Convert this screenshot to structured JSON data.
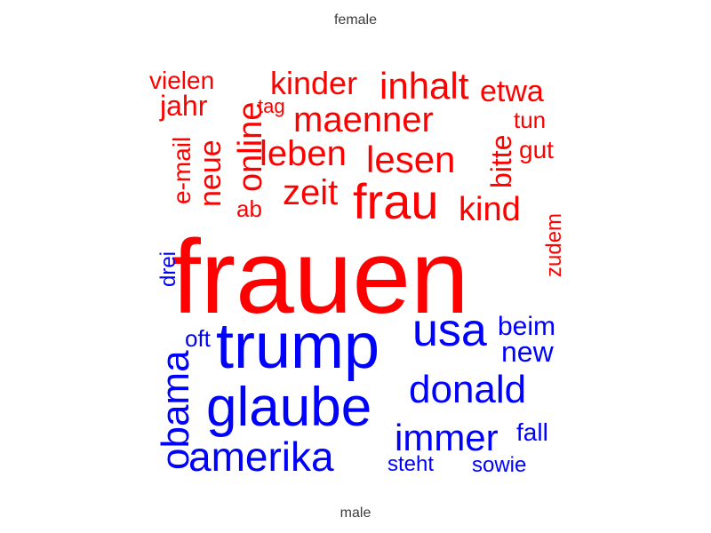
{
  "chart_data": {
    "type": "wordcloud",
    "groups": [
      {
        "name": "female",
        "color": "#ff0000",
        "words": [
          {
            "text": "frauen"
          },
          {
            "text": "frau"
          },
          {
            "text": "inhalt"
          },
          {
            "text": "maenner"
          },
          {
            "text": "lesen"
          },
          {
            "text": "leben"
          },
          {
            "text": "zeit"
          },
          {
            "text": "kinder"
          },
          {
            "text": "online"
          },
          {
            "text": "kind"
          },
          {
            "text": "etwa"
          },
          {
            "text": "neue"
          },
          {
            "text": "bitte"
          },
          {
            "text": "jahr"
          },
          {
            "text": "vielen"
          },
          {
            "text": "e-mail"
          },
          {
            "text": "gut"
          },
          {
            "text": "tun"
          },
          {
            "text": "ab"
          },
          {
            "text": "zudem"
          },
          {
            "text": "tag"
          }
        ]
      },
      {
        "name": "male",
        "color": "#0000ff",
        "words": [
          {
            "text": "trump"
          },
          {
            "text": "glaube"
          },
          {
            "text": "usa"
          },
          {
            "text": "donald"
          },
          {
            "text": "obama"
          },
          {
            "text": "amerika"
          },
          {
            "text": "immer"
          },
          {
            "text": "new"
          },
          {
            "text": "beim"
          },
          {
            "text": "fall"
          },
          {
            "text": "sowie"
          },
          {
            "text": "steht"
          },
          {
            "text": "oft"
          },
          {
            "text": "drei"
          }
        ]
      }
    ],
    "top_label": "female",
    "bottom_label": "male"
  }
}
